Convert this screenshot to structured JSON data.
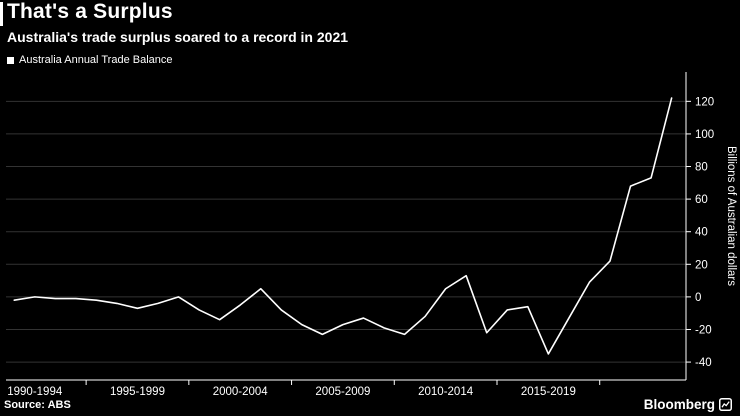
{
  "header": {
    "title": "That's a Surplus",
    "subtitle": "Australia's trade surplus soared to a record in 2021"
  },
  "legend": {
    "marker": "square",
    "label": "Australia Annual Trade Balance"
  },
  "chart_data": {
    "type": "line",
    "title": "Australia Annual Trade Balance",
    "ylabel": "Billions of Australian dollars",
    "ylim": [
      -51,
      138
    ],
    "yticks": [
      -40,
      -20,
      0,
      20,
      40,
      60,
      80,
      100,
      120
    ],
    "xlim": [
      1988.6,
      2021.7
    ],
    "x_ticks": [
      1992.5,
      1997.5,
      2002.5,
      2007.5,
      2012.5,
      2017.5
    ],
    "x_labels": [
      {
        "text": "1990-1994",
        "year": 1990
      },
      {
        "text": "1995-1999",
        "year": 1995
      },
      {
        "text": "2000-2004",
        "year": 2000
      },
      {
        "text": "2005-2009",
        "year": 2005
      },
      {
        "text": "2010-2014",
        "year": 2010
      },
      {
        "text": "2015-2019",
        "year": 2015
      }
    ],
    "grid": "horizontal",
    "legend_position": "top-left",
    "axis_side": "right",
    "series": [
      {
        "name": "Australia Annual Trade Balance",
        "color": "#ffffff",
        "x": [
          1989,
          1990,
          1991,
          1992,
          1993,
          1994,
          1995,
          1996,
          1997,
          1998,
          1999,
          2000,
          2001,
          2002,
          2003,
          2004,
          2005,
          2006,
          2007,
          2008,
          2009,
          2010,
          2011,
          2012,
          2013,
          2014,
          2015,
          2016,
          2017,
          2018,
          2019,
          2020,
          2021
        ],
        "values": [
          -2,
          0,
          -1,
          -1,
          -2,
          -4,
          -7,
          -4,
          0,
          -8,
          -14,
          -5,
          5,
          -8,
          -17,
          -23,
          -17,
          -13,
          -19,
          -23,
          -12,
          5,
          13,
          -22,
          -8,
          -6,
          -35,
          -13,
          9,
          22,
          68,
          73,
          122
        ]
      }
    ]
  },
  "footer": {
    "source": "Source: ABS",
    "brand": "Bloomberg"
  },
  "colors": {
    "background": "#000000",
    "text": "#ffffff",
    "grid": "#333333",
    "axis": "#ffffff",
    "line": "#ffffff"
  }
}
